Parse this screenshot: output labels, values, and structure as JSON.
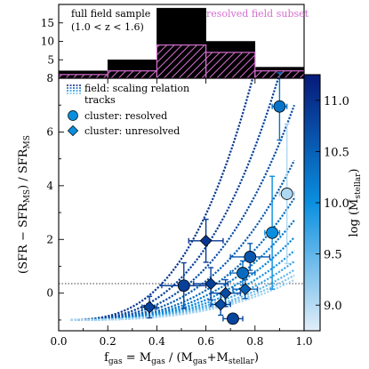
{
  "chart_data": [
    {
      "type": "bar",
      "panel": "top histogram",
      "bin_edges": [
        0.0,
        0.2,
        0.4,
        0.6,
        0.8,
        1.0
      ],
      "series": [
        {
          "name": "full field sample",
          "values": [
            2,
            5,
            19,
            10,
            3
          ],
          "color": "#000000"
        },
        {
          "name": "resolved field subset",
          "values": [
            1,
            2,
            9,
            7,
            2
          ],
          "color": "#d56fd0",
          "hatched": true
        }
      ],
      "yticks": [
        5,
        10,
        15
      ],
      "ylim": [
        0,
        20
      ],
      "legend": {
        "text_line1": "full field sample",
        "text_line2": "(1.0 < z < 1.6)",
        "subset_label": "resolved field subset"
      }
    },
    {
      "type": "scatter",
      "panel": "main",
      "xlabel_main": "f",
      "xlabel_sub": "gas",
      "xlabel_rest": " = M",
      "xlabel_sub2": "gas",
      "xlabel_rest2": " / (M",
      "xlabel_sub3": "gas",
      "xlabel_rest3": "+M",
      "xlabel_sub4": "stellar",
      "xlabel_rest4": ")",
      "ylabel_a": "(SFR − SFR",
      "ylabel_sub": "MS",
      "ylabel_b": ") / SFR",
      "ylabel_sub2": "MS",
      "xlim": [
        0.0,
        1.0
      ],
      "ylim": [
        -1.4,
        8.0
      ],
      "xticks": [
        "0.0",
        "0.2",
        "0.4",
        "0.6",
        "0.8",
        "1.0"
      ],
      "yticks": [
        "0",
        "2",
        "4",
        "6",
        "8"
      ],
      "zero_line": true,
      "legend": {
        "tracks_line1": "field: scaling relation",
        "tracks_line2": "tracks",
        "resolved": "cluster: resolved",
        "unresolved": "cluster: unresolved"
      },
      "tracks": [
        {
          "f0": 0.38,
          "logM": 10.95
        },
        {
          "f0": 0.43,
          "logM": 10.85
        },
        {
          "f0": 0.48,
          "logM": 10.7
        },
        {
          "f0": 0.53,
          "logM": 10.55
        },
        {
          "f0": 0.58,
          "logM": 10.4
        },
        {
          "f0": 0.62,
          "logM": 10.25
        },
        {
          "f0": 0.66,
          "logM": 10.1
        },
        {
          "f0": 0.7,
          "logM": 9.9
        },
        {
          "f0": 0.74,
          "logM": 9.7
        },
        {
          "f0": 0.78,
          "logM": 9.5
        },
        {
          "f0": 0.81,
          "logM": 9.3
        },
        {
          "f0": 0.84,
          "logM": 9.1
        }
      ],
      "resolved": [
        {
          "x": 0.51,
          "y": 0.28,
          "xerr": 0.09,
          "yerr": 0.85,
          "logM": 10.85
        },
        {
          "x": 0.75,
          "y": 0.75,
          "xerr": 0.05,
          "yerr": 0.45,
          "logM": 10.4
        },
        {
          "x": 0.78,
          "y": 1.35,
          "xerr": 0.08,
          "yerr": 0.5,
          "logM": 10.6
        },
        {
          "x": 0.71,
          "y": -0.95,
          "xerr": 0.04,
          "yerr": 0.0,
          "logM": 10.8
        },
        {
          "x": 0.87,
          "y": 2.25,
          "xerr": 0.03,
          "yerr": 2.1,
          "logM": 10.0
        },
        {
          "x": 0.9,
          "y": 6.95,
          "xerr": 0.03,
          "yerr": 1.25,
          "logM": 10.3
        },
        {
          "x": 0.93,
          "y": 3.7,
          "xerr": 0.03,
          "yerr": 2.6,
          "logM": 9.05
        }
      ],
      "unresolved": [
        {
          "x": 0.37,
          "y": -0.52,
          "xerr": 0.03,
          "yerr": 0.4,
          "logM": 10.8
        },
        {
          "x": 0.6,
          "y": 1.95,
          "xerr": 0.07,
          "yerr": 0.8,
          "logM": 10.95
        },
        {
          "x": 0.62,
          "y": 0.35,
          "xerr": 0.07,
          "yerr": 0.6,
          "logM": 10.85
        },
        {
          "x": 0.68,
          "y": 0.0,
          "xerr": 0.06,
          "yerr": 0.5,
          "logM": 10.75
        },
        {
          "x": 0.66,
          "y": -0.42,
          "xerr": 0.04,
          "yerr": 0.4,
          "logM": 10.7
        },
        {
          "x": 0.76,
          "y": 0.15,
          "xerr": 0.05,
          "yerr": 0.35,
          "logM": 10.5
        }
      ]
    },
    {
      "type": "heatmap",
      "panel": "colorbar",
      "label_a": "log (M",
      "label_sub": "stellar",
      "label_b": ")",
      "range": [
        8.75,
        11.25
      ],
      "ticks": [
        "9.0",
        "9.5",
        "10.0",
        "10.5",
        "11.0"
      ],
      "colors": [
        "#e1eef8",
        "#0a8fe0",
        "#061a78"
      ]
    }
  ]
}
